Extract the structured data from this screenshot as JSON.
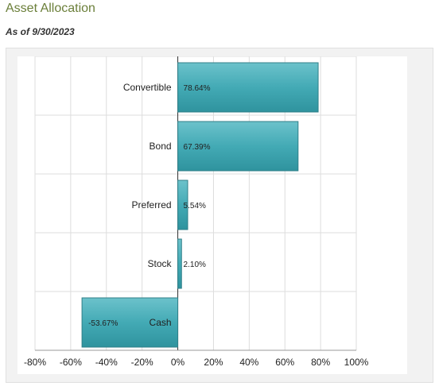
{
  "header": {
    "title": "Asset Allocation",
    "as_of": "As of 9/30/2023"
  },
  "colors": {
    "bar_fill": "#41a8b3",
    "bar_stroke": "#2f7f88",
    "title_color": "#6b7f3a"
  },
  "chart_data": {
    "type": "bar",
    "orientation": "horizontal",
    "title": "",
    "xlabel": "",
    "ylabel": "",
    "categories": [
      "Convertible",
      "Bond",
      "Preferred",
      "Stock",
      "Cash"
    ],
    "values": [
      78.64,
      67.39,
      5.54,
      2.1,
      -53.67
    ],
    "data_labels": [
      "78.64%",
      "67.39%",
      "5.54%",
      "2.10%",
      "-53.67%"
    ],
    "xlim": [
      -80,
      100
    ],
    "x_ticks": [
      -80,
      -60,
      -40,
      -20,
      0,
      20,
      40,
      60,
      80,
      100
    ],
    "x_tick_labels": [
      "-80%",
      "-60%",
      "-40%",
      "-20%",
      "0%",
      "20%",
      "40%",
      "60%",
      "80%",
      "100%"
    ],
    "grid": true,
    "legend": "none"
  }
}
